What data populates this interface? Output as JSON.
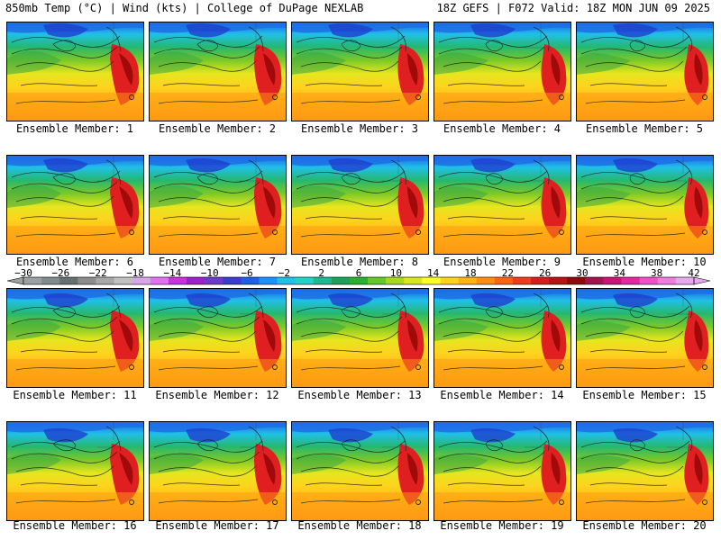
{
  "header": {
    "left": "850mb Temp (°C) | Wind (kts) | College of DuPage NEXLAB",
    "right": "18Z GEFS | F072 Valid: 18Z MON JUN 09 2025"
  },
  "panels": [
    {
      "label": "Ensemble Member: 1"
    },
    {
      "label": "Ensemble Member: 2"
    },
    {
      "label": "Ensemble Member: 3"
    },
    {
      "label": "Ensemble Member: 4"
    },
    {
      "label": "Ensemble Member: 5"
    },
    {
      "label": "Ensemble Member: 6"
    },
    {
      "label": "Ensemble Member: 7"
    },
    {
      "label": "Ensemble Member: 8"
    },
    {
      "label": "Ensemble Member: 9"
    },
    {
      "label": "Ensemble Member: 10"
    },
    {
      "label": "Ensemble Member: 11"
    },
    {
      "label": "Ensemble Member: 12"
    },
    {
      "label": "Ensemble Member: 13"
    },
    {
      "label": "Ensemble Member: 14"
    },
    {
      "label": "Ensemble Member: 15"
    },
    {
      "label": "Ensemble Member: 16"
    },
    {
      "label": "Ensemble Member: 17"
    },
    {
      "label": "Ensemble Member: 18"
    },
    {
      "label": "Ensemble Member: 19"
    },
    {
      "label": "Ensemble Member: 20"
    }
  ],
  "colorbar": {
    "tick_labels": [
      "−30",
      "−26",
      "−22",
      "−18",
      "−14",
      "−10",
      "−6",
      "−2",
      "2",
      "6",
      "10",
      "14",
      "18",
      "22",
      "26",
      "30",
      "34",
      "38",
      "42"
    ],
    "colors": [
      "#9aa1a0",
      "#7f8c8a",
      "#66706e",
      "#8d8d8d",
      "#a8a8a8",
      "#c0c0c0",
      "#d6a6e8",
      "#e173f0",
      "#c832e0",
      "#9b20c8",
      "#6a3cc8",
      "#3c3ccf",
      "#1e5fe6",
      "#1e90ff",
      "#20c0e8",
      "#25d0c8",
      "#20b890",
      "#1ea05a",
      "#2ab02a",
      "#64c828",
      "#a6d81e",
      "#dce61e",
      "#ffff28",
      "#ffd21e",
      "#ffb414",
      "#ff8c14",
      "#ff6414",
      "#f03c1e",
      "#d21e1e",
      "#b41414",
      "#8c0a0a",
      "#a01450",
      "#c81478",
      "#e628a0",
      "#f050c8",
      "#f07ce0",
      "#e8a8ee"
    ]
  }
}
